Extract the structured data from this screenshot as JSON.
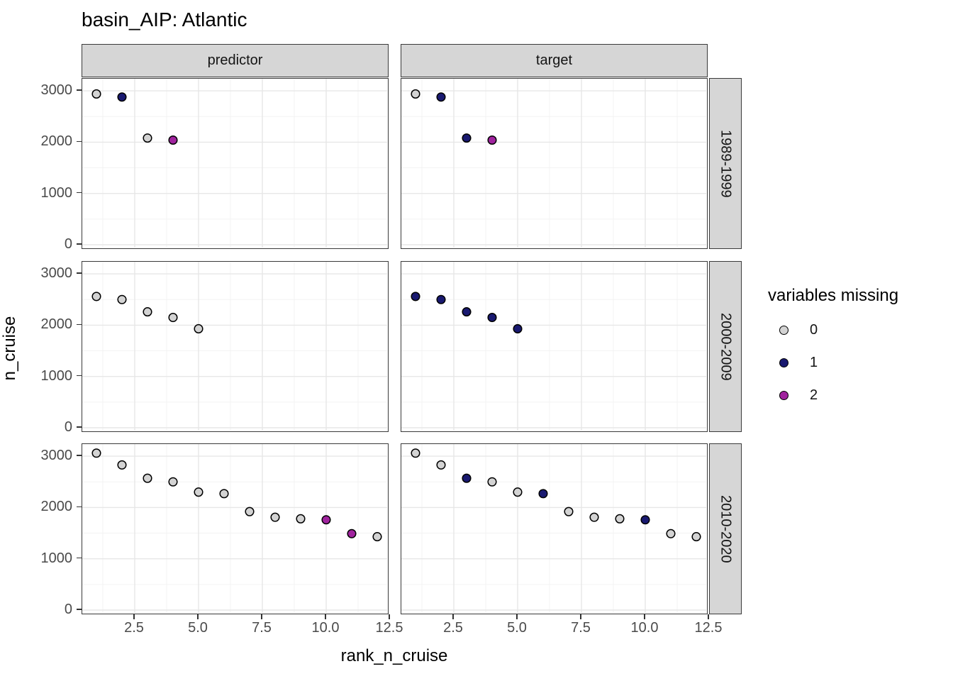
{
  "title": "basin_AIP: Atlantic",
  "axes": {
    "x_label": "rank_n_cruise",
    "y_label": "n_cruise",
    "x_ticks": [
      "2.5",
      "5.0",
      "7.5",
      "10.0",
      "12.5"
    ],
    "x_tick_values": [
      2.5,
      5.0,
      7.5,
      10.0,
      12.5
    ],
    "y_ticks": [
      "3000",
      "2000",
      "1000",
      "0"
    ],
    "y_tick_values": [
      3000,
      2000,
      1000,
      0
    ]
  },
  "facets": {
    "columns": [
      "predictor",
      "target"
    ],
    "rows": [
      "1989-1999",
      "2000-2009",
      "2010-2020"
    ]
  },
  "legend": {
    "title": "variables missing",
    "items": [
      {
        "label": "0",
        "color": "#d3d3d3"
      },
      {
        "label": "1",
        "color": "#191970"
      },
      {
        "label": "2",
        "color": "#a0239e"
      }
    ]
  },
  "colors": {
    "strip_background": "#d6d6d6",
    "panel_border": "#3a3a3a",
    "grid_major": "#e7e7e7",
    "grid_minor": "#f3f3f3",
    "point_outline": "#000000",
    "tick_label": "#4a4a4a"
  },
  "chart_data": {
    "type": "scatter",
    "title": "basin_AIP: Atlantic",
    "xlabel": "rank_n_cruise",
    "ylabel": "n_cruise",
    "x_range": [
      0.45,
      12.55
    ],
    "y_range": [
      -70,
      3265
    ],
    "x_major_gridlines": [
      2.5,
      5.0,
      7.5,
      10.0,
      12.5
    ],
    "x_minor_gridlines": [
      1.25,
      3.75,
      6.25,
      8.75,
      11.25
    ],
    "y_major_gridlines": [
      0,
      1000,
      2000,
      3000
    ],
    "y_minor_gridlines": [
      500,
      1500,
      2500
    ],
    "legend_title": "variables missing",
    "series_key": "variables_missing",
    "panels": [
      {
        "row": "1989-1999",
        "col": "predictor",
        "points": [
          {
            "x": 1,
            "y": 2940,
            "missing": 0
          },
          {
            "x": 2,
            "y": 2880,
            "missing": 1
          },
          {
            "x": 3,
            "y": 2080,
            "missing": 0
          },
          {
            "x": 4,
            "y": 2040,
            "missing": 2
          }
        ]
      },
      {
        "row": "1989-1999",
        "col": "target",
        "points": [
          {
            "x": 1,
            "y": 2940,
            "missing": 0
          },
          {
            "x": 2,
            "y": 2880,
            "missing": 1
          },
          {
            "x": 3,
            "y": 2080,
            "missing": 1
          },
          {
            "x": 4,
            "y": 2040,
            "missing": 2
          }
        ]
      },
      {
        "row": "2000-2009",
        "col": "predictor",
        "points": [
          {
            "x": 1,
            "y": 2560,
            "missing": 0
          },
          {
            "x": 2,
            "y": 2500,
            "missing": 0
          },
          {
            "x": 3,
            "y": 2260,
            "missing": 0
          },
          {
            "x": 4,
            "y": 2150,
            "missing": 0
          },
          {
            "x": 5,
            "y": 1930,
            "missing": 0
          }
        ]
      },
      {
        "row": "2000-2009",
        "col": "target",
        "points": [
          {
            "x": 1,
            "y": 2560,
            "missing": 1
          },
          {
            "x": 2,
            "y": 2500,
            "missing": 1
          },
          {
            "x": 3,
            "y": 2260,
            "missing": 1
          },
          {
            "x": 4,
            "y": 2150,
            "missing": 1
          },
          {
            "x": 5,
            "y": 1930,
            "missing": 1
          }
        ]
      },
      {
        "row": "2010-2020",
        "col": "predictor",
        "points": [
          {
            "x": 1,
            "y": 3060,
            "missing": 0
          },
          {
            "x": 2,
            "y": 2830,
            "missing": 0
          },
          {
            "x": 3,
            "y": 2570,
            "missing": 0
          },
          {
            "x": 4,
            "y": 2500,
            "missing": 0
          },
          {
            "x": 5,
            "y": 2300,
            "missing": 0
          },
          {
            "x": 6,
            "y": 2270,
            "missing": 0
          },
          {
            "x": 7,
            "y": 1920,
            "missing": 0
          },
          {
            "x": 8,
            "y": 1810,
            "missing": 0
          },
          {
            "x": 9,
            "y": 1780,
            "missing": 0
          },
          {
            "x": 10,
            "y": 1760,
            "missing": 2
          },
          {
            "x": 11,
            "y": 1490,
            "missing": 2
          },
          {
            "x": 12,
            "y": 1430,
            "missing": 0
          }
        ]
      },
      {
        "row": "2010-2020",
        "col": "target",
        "points": [
          {
            "x": 1,
            "y": 3060,
            "missing": 0
          },
          {
            "x": 2,
            "y": 2830,
            "missing": 0
          },
          {
            "x": 3,
            "y": 2570,
            "missing": 1
          },
          {
            "x": 4,
            "y": 2500,
            "missing": 0
          },
          {
            "x": 5,
            "y": 2300,
            "missing": 0
          },
          {
            "x": 6,
            "y": 2270,
            "missing": 1
          },
          {
            "x": 7,
            "y": 1920,
            "missing": 0
          },
          {
            "x": 8,
            "y": 1810,
            "missing": 0
          },
          {
            "x": 9,
            "y": 1780,
            "missing": 0
          },
          {
            "x": 10,
            "y": 1760,
            "missing": 1
          },
          {
            "x": 11,
            "y": 1490,
            "missing": 0
          },
          {
            "x": 12,
            "y": 1430,
            "missing": 0
          }
        ]
      }
    ]
  }
}
